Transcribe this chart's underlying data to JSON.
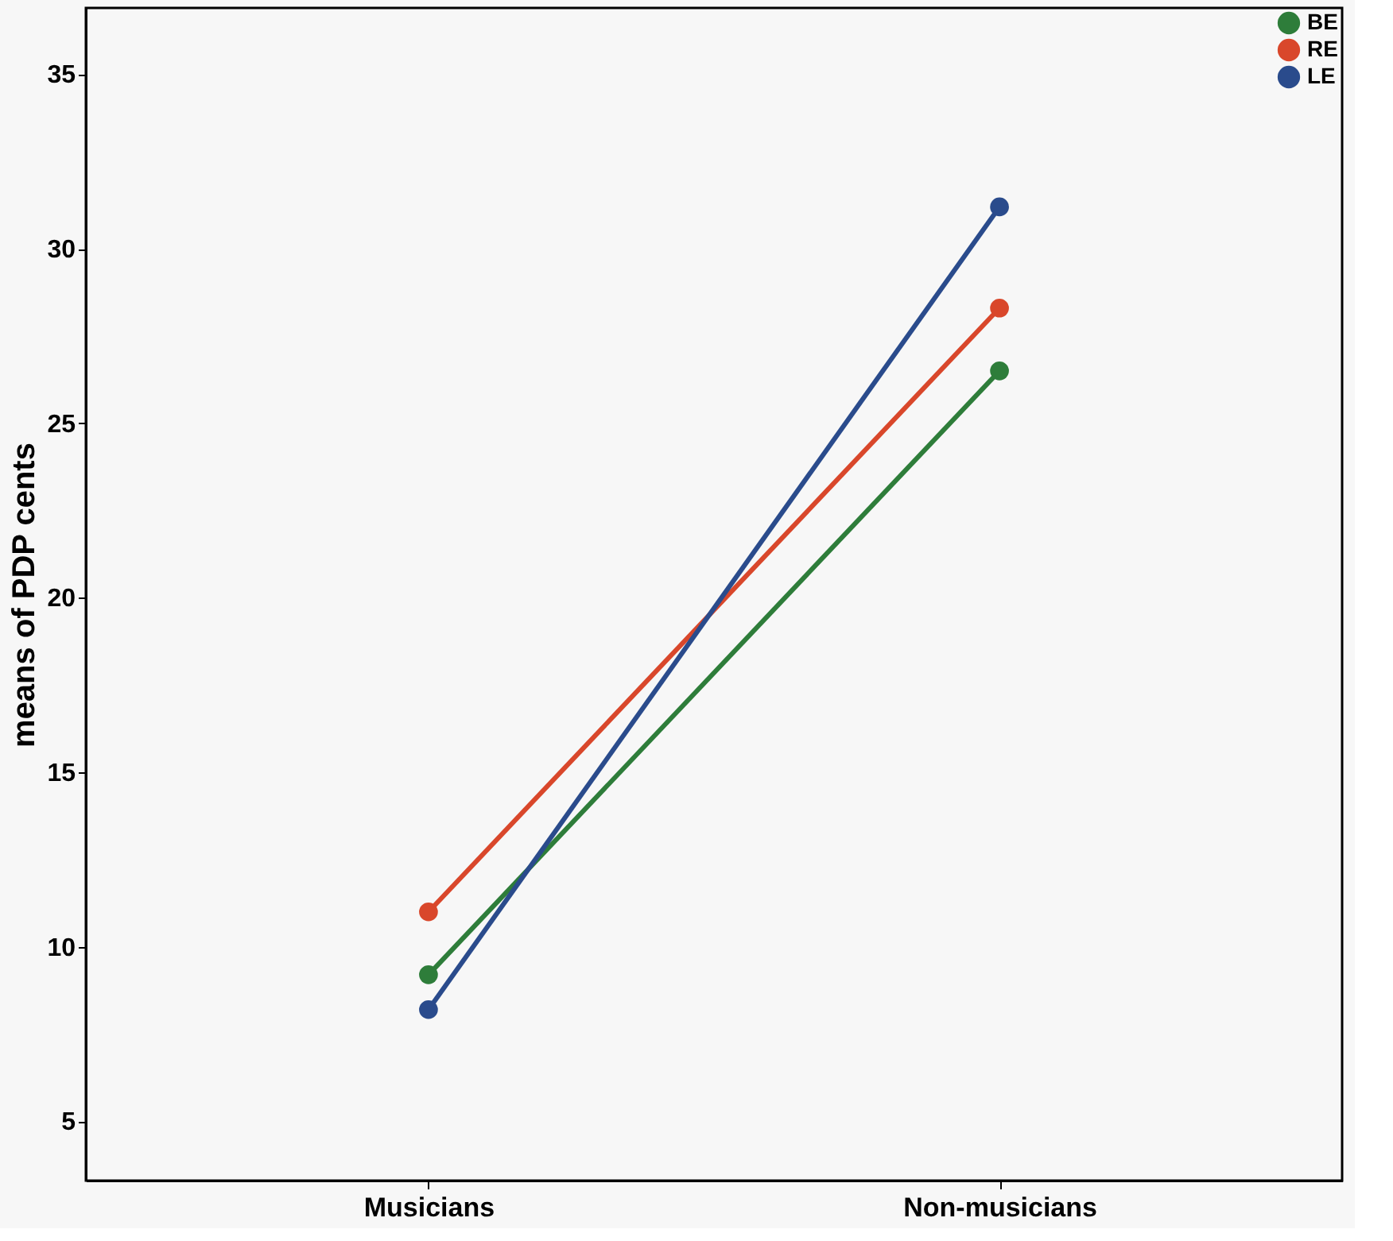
{
  "chart_data": {
    "type": "line",
    "ylabel": "means of PDP  cents",
    "categories": [
      "Musicians",
      "Non-musicians"
    ],
    "series": [
      {
        "name": "BE",
        "color": "#2e7d3a",
        "values": [
          9.2,
          26.5
        ]
      },
      {
        "name": "RE",
        "color": "#d9472b",
        "values": [
          11.0,
          28.3
        ]
      },
      {
        "name": "LE",
        "color": "#2a4b8c",
        "values": [
          8.2,
          31.2
        ]
      }
    ],
    "ylim": [
      3.3,
      36.9
    ],
    "yticks": [
      5,
      10,
      15,
      20,
      25,
      30,
      35
    ],
    "grid": false,
    "legend": "top right",
    "marker": "circle",
    "line_style": "solid"
  }
}
